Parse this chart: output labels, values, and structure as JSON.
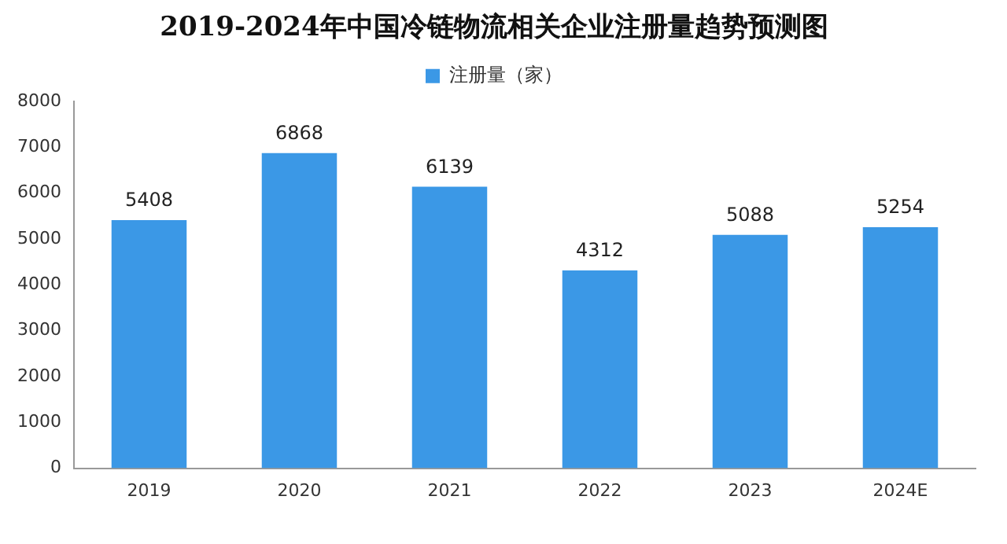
{
  "chart_data": {
    "type": "bar",
    "title": "2019-2024年中国冷链物流相关企业注册量趋势预测图",
    "categories": [
      "2019",
      "2020",
      "2021",
      "2022",
      "2023",
      "2024E"
    ],
    "series": [
      {
        "name": "注册量（家）",
        "color": "#3b98e6",
        "values": [
          5408,
          6868,
          6139,
          4312,
          5088,
          5254
        ]
      }
    ],
    "ylim": [
      0,
      8000
    ],
    "yticks": [
      0,
      1000,
      2000,
      3000,
      4000,
      5000,
      6000,
      7000,
      8000
    ],
    "grid": false,
    "legend": "top",
    "data_labels": true
  }
}
